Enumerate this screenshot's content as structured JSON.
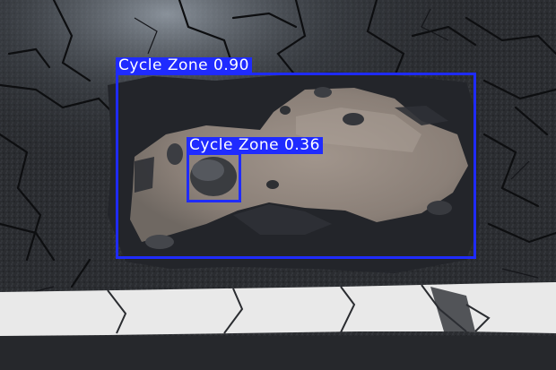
{
  "image": {
    "description_kind": "road pothole photo with object detection overlays"
  },
  "detections": [
    {
      "label": "Cycle Zone 0.90",
      "color": "#1f2bff"
    },
    {
      "label": "Cycle Zone 0.36",
      "color": "#1f2bff"
    }
  ],
  "colors": {
    "asphalt": "#2a2c30",
    "asphalt_light": "#4a4e55",
    "puddle": "#8a7f78",
    "road_marking": "#e9e9e9",
    "box": "#1f2bff"
  }
}
